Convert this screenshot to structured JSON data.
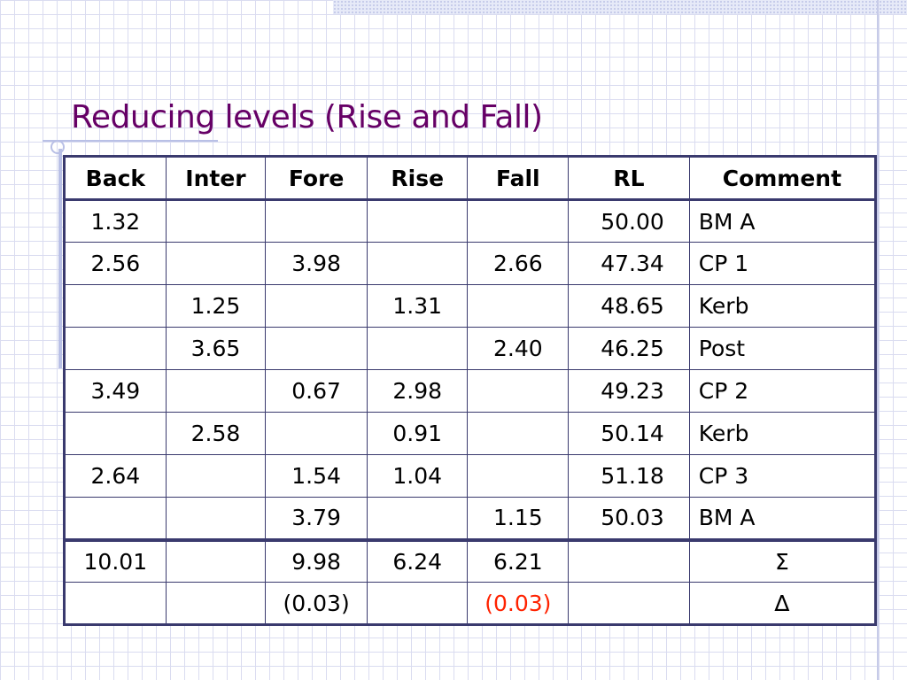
{
  "slide": {
    "title": "Reducing levels (Rise and Fall)"
  },
  "table": {
    "headers": [
      "Back",
      "Inter",
      "Fore",
      "Rise",
      "Fall",
      "RL",
      "Comment"
    ],
    "rows": [
      {
        "back": "1.32",
        "inter": "",
        "fore": "",
        "rise": "",
        "fall": "",
        "rl": "50.00",
        "comment": "BM A"
      },
      {
        "back": "2.56",
        "inter": "",
        "fore": "3.98",
        "rise": "",
        "fall": "2.66",
        "rl": "47.34",
        "comment": "CP 1"
      },
      {
        "back": "",
        "inter": "1.25",
        "fore": "",
        "rise": "1.31",
        "fall": "",
        "rl": "48.65",
        "comment": "Kerb"
      },
      {
        "back": "",
        "inter": "3.65",
        "fore": "",
        "rise": "",
        "fall": "2.40",
        "rl": "46.25",
        "comment": "Post"
      },
      {
        "back": "3.49",
        "inter": "",
        "fore": "0.67",
        "rise": "2.98",
        "fall": "",
        "rl": "49.23",
        "comment": "CP 2"
      },
      {
        "back": "",
        "inter": "2.58",
        "fore": "",
        "rise": "0.91",
        "fall": "",
        "rl": "50.14",
        "comment": "Kerb"
      },
      {
        "back": "2.64",
        "inter": "",
        "fore": "1.54",
        "rise": "1.04",
        "fall": "",
        "rl": "51.18",
        "comment": "CP 3"
      },
      {
        "back": "",
        "inter": "",
        "fore": "3.79",
        "rise": "",
        "fall": "1.15",
        "rl": "50.03",
        "comment": "BM A"
      }
    ],
    "sums": {
      "back": "10.01",
      "inter": "",
      "fore": "9.98",
      "rise": "6.24",
      "fall": "6.21",
      "rl": "",
      "symbol": "Σ"
    },
    "diffs": {
      "back": "",
      "inter": "",
      "fore": "(0.03)",
      "rise": "",
      "fall": "(0.03)",
      "rl": "",
      "symbol": "∆"
    },
    "colors": {
      "title": "#660066",
      "border": "#3a3a6e",
      "highlight": "#ff2200"
    }
  }
}
